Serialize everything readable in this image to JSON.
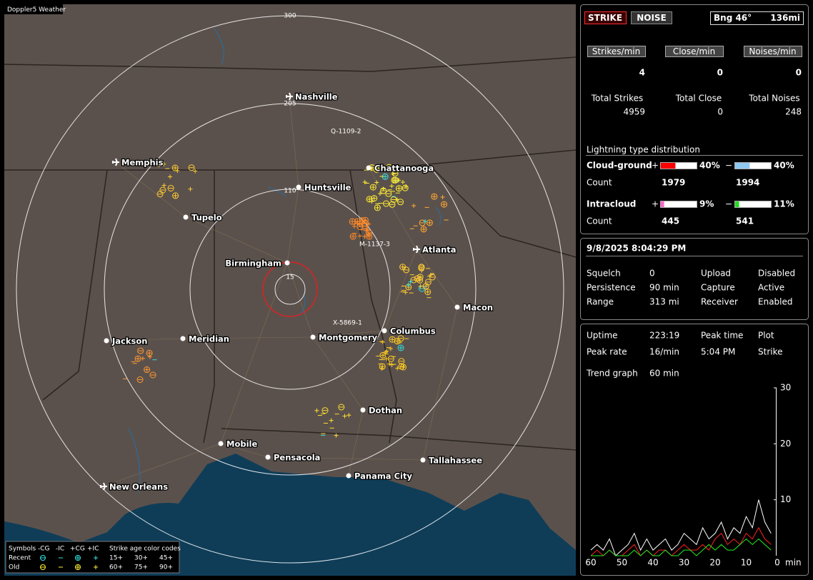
{
  "map": {
    "title": "Doppler5 Weather",
    "range_labels": [
      "300",
      "205",
      "110",
      "15"
    ],
    "cities": [
      {
        "name": "Nashville",
        "airport": true
      },
      {
        "name": "Memphis",
        "airport": true
      },
      {
        "name": "Chattanooga",
        "airport": false
      },
      {
        "name": "Huntsville",
        "airport": false
      },
      {
        "name": "Tupelo",
        "airport": false
      },
      {
        "name": "Atlanta",
        "airport": true
      },
      {
        "name": "Birmingham",
        "airport": false
      },
      {
        "name": "Macon",
        "airport": false
      },
      {
        "name": "Jackson",
        "airport": false
      },
      {
        "name": "Meridian",
        "airport": false
      },
      {
        "name": "Montgomery",
        "airport": false
      },
      {
        "name": "Columbus",
        "airport": false
      },
      {
        "name": "Dothan",
        "airport": false
      },
      {
        "name": "Mobile",
        "airport": false
      },
      {
        "name": "Pensacola",
        "airport": false
      },
      {
        "name": "Tallahassee",
        "airport": false
      },
      {
        "name": "Panama City",
        "airport": false
      },
      {
        "name": "New Orleans",
        "airport": true
      }
    ],
    "strike_labels": [
      "Q-1109-2",
      "M-1137-3",
      "X-5869-1"
    ],
    "legend": {
      "symbols_label": "Symbols",
      "types": [
        "-CG",
        "-IC",
        "+CG",
        "+IC"
      ],
      "age_label": "Strike age color codes",
      "rows": [
        "Recent",
        "Old"
      ],
      "ages": [
        "15+",
        "30+",
        "45+",
        "60+",
        "75+",
        "90+"
      ]
    }
  },
  "status": {
    "buttons": [
      "STRIKE",
      "NOISE"
    ],
    "bearing": "Bng 46°",
    "distance": "136mi",
    "rates": [
      {
        "label": "Strikes/min",
        "value": 4,
        "color": "#ffffff"
      },
      {
        "label": "Close/min",
        "value": 0,
        "color": "#ffffff"
      },
      {
        "label": "Noises/min",
        "value": 0,
        "color": "#b0b0b0"
      }
    ],
    "totals": [
      {
        "label": "Total Strikes",
        "value": 4959
      },
      {
        "label": "Total Close",
        "value": 0
      },
      {
        "label": "Total Noises",
        "value": 248
      }
    ],
    "distribution": {
      "title": "Lightning type distribution",
      "count_label": "Count",
      "rows": [
        {
          "name": "Cloud-ground",
          "positive": {
            "sign": "+",
            "percent": {
              "value": 40,
              "label": "40%"
            },
            "count": 1979,
            "color": "#ff0000"
          },
          "negative": {
            "sign": "−",
            "percent": {
              "value": 40,
              "label": "40%"
            },
            "count": 1994,
            "color": "#8fc8f0"
          }
        },
        {
          "name": "Intracloud",
          "positive": {
            "sign": "+",
            "percent": {
              "value": 9,
              "label": "9%"
            },
            "count": 445,
            "color": "#ff66cc"
          },
          "negative": {
            "sign": "−",
            "percent": {
              "value": 11,
              "label": "11%"
            },
            "count": 541,
            "color": "#22dd22"
          }
        }
      ]
    }
  },
  "settings": {
    "datetime": "9/8/2025 8:04:29 PM",
    "rows": [
      {
        "label": "Squelch",
        "value": 0,
        "color": "#ffffff"
      },
      {
        "label": "Upload",
        "value": "Disabled",
        "color": "#b0b0b0"
      },
      {
        "label": "Persistence",
        "value": "90 min",
        "color": "#ffffff"
      },
      {
        "label": "Capture",
        "value": "Active",
        "color": "#33ff33"
      },
      {
        "label": "Range",
        "value": "313 mi",
        "color": "#ffffff"
      },
      {
        "label": "Receiver",
        "value": "Enabled",
        "color": "#33ff33"
      }
    ]
  },
  "info": {
    "uptime_label": "Uptime",
    "uptime": "223:19",
    "peak_time_label": "Peak time",
    "peak_time": "5:04 PM",
    "plot_label": "Plot",
    "plot": "Strike",
    "peak_rate_label": "Peak rate",
    "peak_rate": "16/min",
    "trend_label": "Trend graph",
    "trend_period": "60 min"
  },
  "trend": {
    "type": "line",
    "xlim": [
      60,
      0
    ],
    "xticks": [
      60,
      50,
      40,
      30,
      20,
      10,
      0
    ],
    "x_unit": "min",
    "ylim": [
      0,
      30
    ],
    "yticks": [
      10,
      20,
      30
    ],
    "x": [
      60,
      58,
      56,
      54,
      52,
      50,
      48,
      46,
      44,
      42,
      40,
      38,
      36,
      34,
      32,
      30,
      28,
      26,
      24,
      22,
      20,
      18,
      16,
      14,
      12,
      10,
      8,
      6,
      4,
      2
    ],
    "series": [
      {
        "color": "#ffffff",
        "values": [
          1,
          2,
          1,
          3,
          0,
          1,
          2,
          4,
          1,
          3,
          1,
          2,
          3,
          1,
          2,
          4,
          3,
          2,
          5,
          3,
          4,
          6,
          3,
          5,
          4,
          7,
          5,
          10,
          6,
          4
        ]
      },
      {
        "color": "#ff2020",
        "values": [
          0,
          1,
          0,
          1,
          0,
          0,
          1,
          2,
          0,
          1,
          0,
          1,
          1,
          0,
          1,
          2,
          1,
          1,
          2,
          1,
          3,
          4,
          2,
          3,
          2,
          4,
          3,
          5,
          3,
          2
        ]
      },
      {
        "color": "#22ee22",
        "values": [
          0,
          0,
          0,
          1,
          0,
          0,
          0,
          1,
          0,
          1,
          0,
          0,
          1,
          0,
          0,
          1,
          1,
          0,
          1,
          2,
          1,
          2,
          1,
          1,
          2,
          3,
          2,
          3,
          2,
          1
        ]
      }
    ]
  }
}
